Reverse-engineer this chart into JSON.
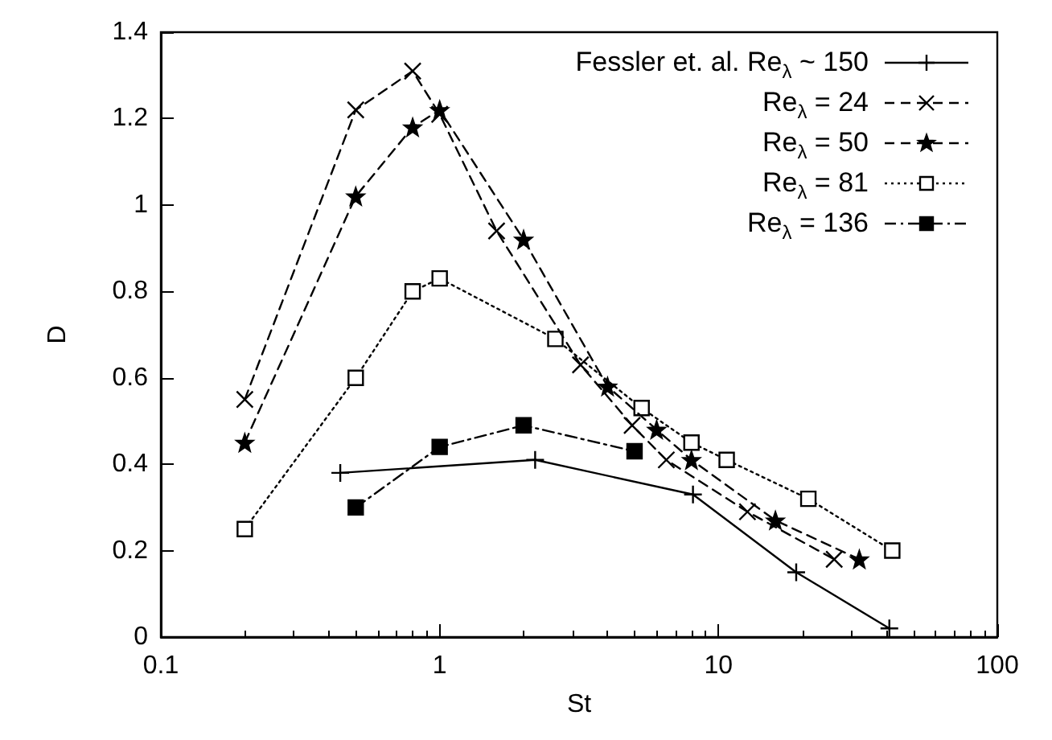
{
  "chart_data": {
    "type": "line",
    "xlabel": "St",
    "ylabel": "D",
    "log": "x",
    "xlim": [
      0.1,
      100
    ],
    "xticks": [
      0.1,
      1,
      10,
      100
    ],
    "ylim": [
      0,
      1.4
    ],
    "yticks": [
      0,
      0.2,
      0.4,
      0.6,
      0.8,
      1,
      1.2,
      1.4
    ],
    "grid": false,
    "legend": "top right",
    "series": [
      {
        "name": "Fessler et. al. Re$_{λ}$ ~ 150",
        "color": "#000000",
        "marker": "plus",
        "line_style": "solid",
        "x": [
          0.44,
          2.2,
          8.1,
          19,
          41
        ],
        "values": [
          0.38,
          0.41,
          0.33,
          0.15,
          0.02
        ]
      },
      {
        "name": "Re$_{λ}$ = 24",
        "color": "#000000",
        "marker": "cross",
        "line_style": "dashed",
        "x": [
          0.2,
          0.5,
          0.8,
          1,
          1.6,
          3.2,
          4.9,
          6.5,
          12.7,
          26
        ],
        "values": [
          0.55,
          1.22,
          1.31,
          1.21,
          0.94,
          0.63,
          0.49,
          0.41,
          0.29,
          0.18
        ]
      },
      {
        "name": "Re$_{λ}$ = 50",
        "color": "#000000",
        "marker": "star",
        "line_style": "dashed",
        "x": [
          0.2,
          0.5,
          0.8,
          1,
          2,
          4,
          6,
          8,
          16,
          32
        ],
        "values": [
          0.45,
          1.02,
          1.18,
          1.22,
          0.92,
          0.58,
          0.48,
          0.41,
          0.27,
          0.18
        ]
      },
      {
        "name": "Re$_{λ}$ = 81",
        "color": "#000000",
        "marker": "square-open",
        "line_style": "dotted",
        "x": [
          0.2,
          0.5,
          0.8,
          1,
          2.6,
          5.3,
          8,
          10.7,
          21,
          42
        ],
        "values": [
          0.25,
          0.6,
          0.8,
          0.83,
          0.69,
          0.53,
          0.45,
          0.41,
          0.32,
          0.2
        ]
      },
      {
        "name": "Re$_{λ}$ = 136",
        "color": "#000000",
        "marker": "square",
        "line_style": "dashdot",
        "x": [
          0.5,
          1,
          2,
          5
        ],
        "values": [
          0.3,
          0.44,
          0.49,
          0.43
        ]
      }
    ]
  }
}
